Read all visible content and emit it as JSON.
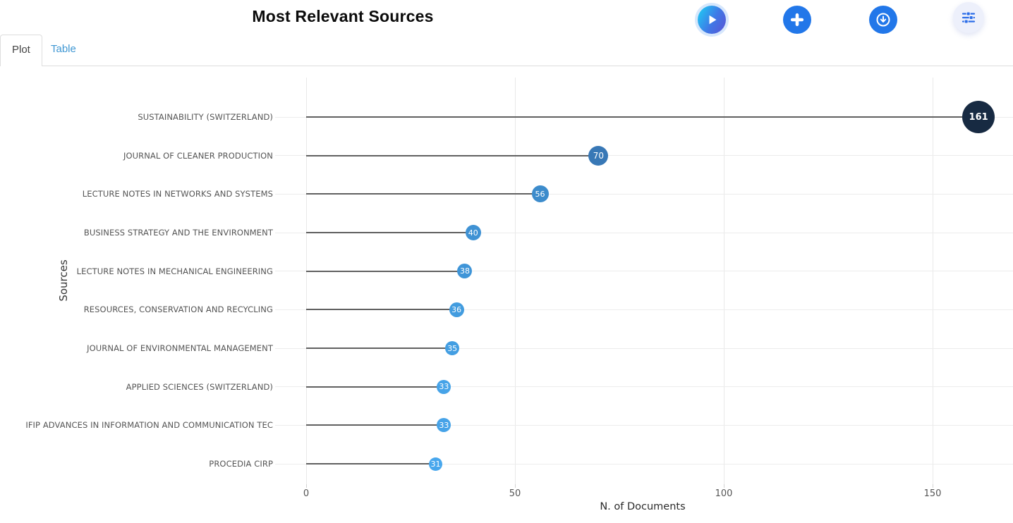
{
  "header": {
    "title": "Most Relevant Sources"
  },
  "toolbar": {
    "icons": [
      "play-icon",
      "plus-icon",
      "download-icon",
      "sliders-icon"
    ]
  },
  "tabs": [
    {
      "label": "Plot",
      "active": true
    },
    {
      "label": "Table",
      "active": false
    }
  ],
  "chart_data": {
    "type": "scatter",
    "variant": "horizontal-lollipop",
    "title": "Most Relevant Sources",
    "xlabel": "N. of Documents",
    "ylabel": "Sources",
    "categories": [
      "SUSTAINABILITY (SWITZERLAND)",
      "JOURNAL OF CLEANER PRODUCTION",
      "LECTURE NOTES IN NETWORKS AND SYSTEMS",
      "BUSINESS STRATEGY AND THE ENVIRONMENT",
      "LECTURE NOTES IN MECHANICAL ENGINEERING",
      "RESOURCES, CONSERVATION AND RECYCLING",
      "JOURNAL OF ENVIRONMENTAL MANAGEMENT",
      "APPLIED SCIENCES (SWITZERLAND)",
      "IFIP ADVANCES IN INFORMATION AND COMMUNICATION TEC",
      "PROCEDIA CIRP"
    ],
    "values": [
      161,
      70,
      56,
      40,
      38,
      36,
      35,
      33,
      33,
      31
    ],
    "xticks": [
      0,
      50,
      100,
      150
    ],
    "xlim": [
      0,
      169
    ],
    "grid": true,
    "legend": "none",
    "point_colors": [
      "#172a42",
      "#3878b6",
      "#3d8ccc",
      "#3f92d4",
      "#3f95d8",
      "#429cdf",
      "#439ee2",
      "#46a3e8",
      "#46a3e8",
      "#48a7ed"
    ],
    "point_sizes": [
      46,
      28,
      24,
      22,
      21,
      21,
      20,
      20,
      20,
      19
    ]
  },
  "colors": {
    "button_blue": "#2277e9",
    "play_gradient_start": "#1fcaf3",
    "play_gradient_end": "#5b52d4",
    "filters_button_bg": "#edf0fb",
    "tab_link": "#3f97d3",
    "stem": "#606060",
    "gridline": "#ececec",
    "axis_text": "#555555"
  }
}
